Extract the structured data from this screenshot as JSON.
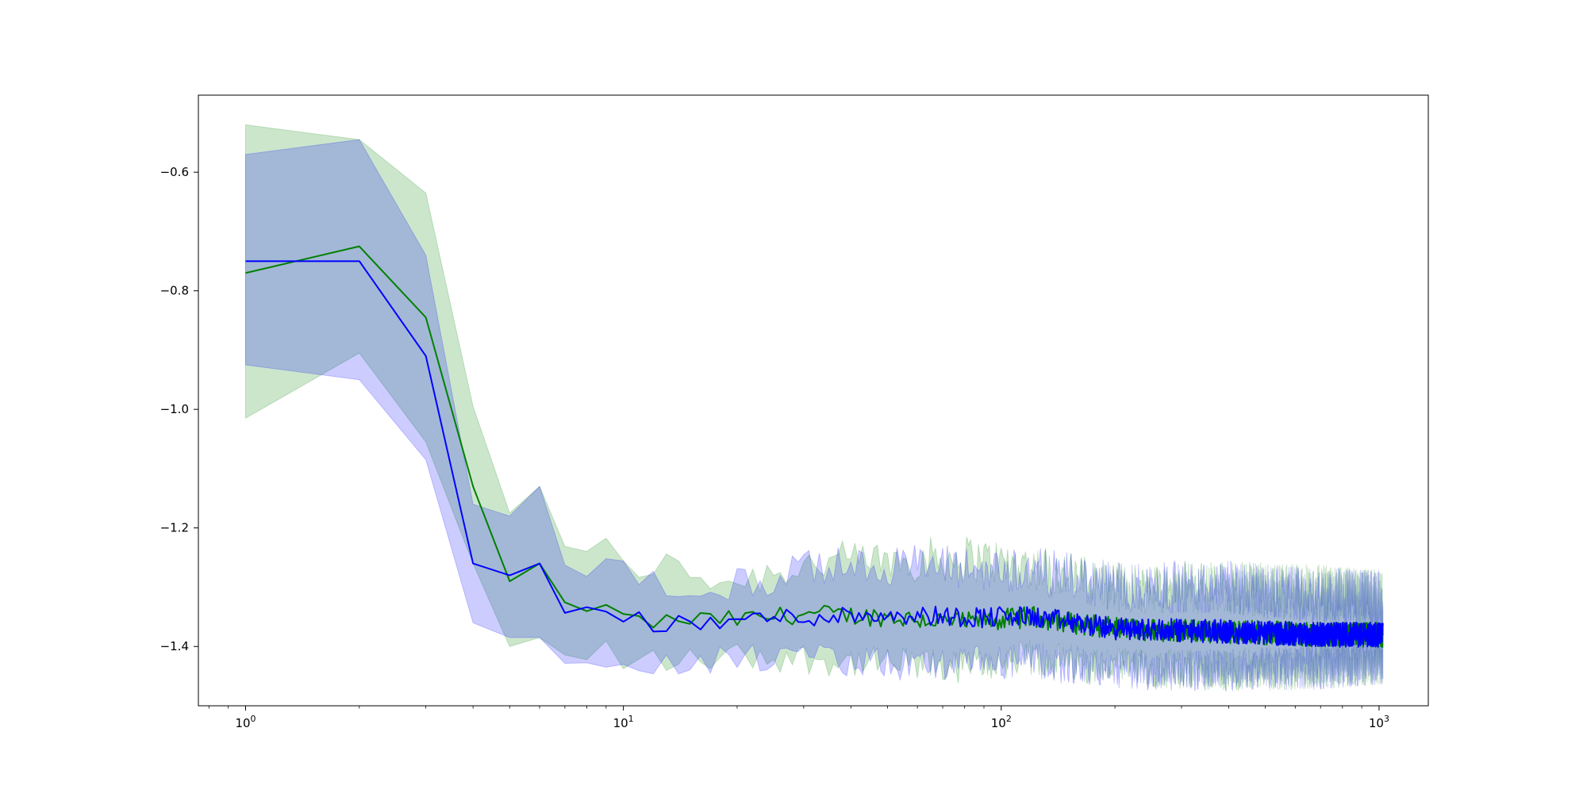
{
  "chart_data": {
    "type": "line",
    "title": "",
    "xlabel": "",
    "ylabel": "",
    "xscale": "log",
    "xlim": [
      0.75,
      1350
    ],
    "ylim": [
      -1.5,
      -0.47
    ],
    "grid": false,
    "legend": "none",
    "x_ticks": [
      {
        "value": 1,
        "base": "10",
        "exp": "0"
      },
      {
        "value": 10,
        "base": "10",
        "exp": "1"
      },
      {
        "value": 100,
        "base": "10",
        "exp": "2"
      },
      {
        "value": 1000,
        "base": "10",
        "exp": "3"
      }
    ],
    "y_ticks": [
      {
        "value": -0.6,
        "label": "−0.6"
      },
      {
        "value": -0.8,
        "label": "−0.8"
      },
      {
        "value": -1.0,
        "label": "−1.0"
      },
      {
        "value": -1.2,
        "label": "−1.2"
      },
      {
        "value": -1.4,
        "label": "−1.4"
      }
    ],
    "series": [
      {
        "color": "#008000",
        "band_color": "#008000",
        "band_opacity": 0.2,
        "anchors": [
          [
            1,
            -0.77,
            -0.52,
            -1.015
          ],
          [
            2,
            -0.725,
            -0.545,
            -0.905
          ],
          [
            3,
            -0.845,
            -0.635,
            -1.055
          ],
          [
            4,
            -1.13,
            -0.995,
            -1.26
          ],
          [
            5,
            -1.29,
            -1.175,
            -1.4
          ],
          [
            6,
            -1.26,
            -1.13,
            -1.385
          ],
          [
            7,
            -1.33,
            -1.22,
            -1.42
          ],
          [
            8,
            -1.355,
            -1.25,
            -1.43
          ],
          [
            9,
            -1.32,
            -1.24,
            -1.4
          ],
          [
            10,
            -1.355,
            -1.27,
            -1.43
          ],
          [
            12,
            -1.36,
            -1.26,
            -1.42
          ],
          [
            15,
            -1.355,
            -1.275,
            -1.425
          ],
          [
            20,
            -1.355,
            -1.29,
            -1.415
          ],
          [
            30,
            -1.345,
            -1.26,
            -1.42
          ],
          [
            50,
            -1.35,
            -1.255,
            -1.43
          ],
          [
            80,
            -1.36,
            -1.25,
            -1.435
          ],
          [
            120,
            -1.35,
            -1.265,
            -1.42
          ],
          [
            200,
            -1.37,
            -1.3,
            -1.435
          ],
          [
            400,
            -1.375,
            -1.3,
            -1.44
          ],
          [
            700,
            -1.38,
            -1.31,
            -1.435
          ],
          [
            1024,
            -1.38,
            -1.32,
            -1.425
          ]
        ]
      },
      {
        "color": "#0000ff",
        "band_color": "#0000ff",
        "band_opacity": 0.2,
        "anchors": [
          [
            1,
            -0.75,
            -0.57,
            -0.925
          ],
          [
            2,
            -0.75,
            -0.545,
            -0.95
          ],
          [
            3,
            -0.91,
            -0.74,
            -1.085
          ],
          [
            4,
            -1.26,
            -1.16,
            -1.36
          ],
          [
            5,
            -1.28,
            -1.18,
            -1.385
          ],
          [
            6,
            -1.26,
            -1.13,
            -1.385
          ],
          [
            7,
            -1.33,
            -1.25,
            -1.415
          ],
          [
            8,
            -1.345,
            -1.26,
            -1.42
          ],
          [
            9,
            -1.34,
            -1.26,
            -1.42
          ],
          [
            10,
            -1.345,
            -1.28,
            -1.41
          ],
          [
            12,
            -1.36,
            -1.29,
            -1.43
          ],
          [
            15,
            -1.365,
            -1.3,
            -1.435
          ],
          [
            20,
            -1.355,
            -1.3,
            -1.42
          ],
          [
            30,
            -1.35,
            -1.27,
            -1.42
          ],
          [
            50,
            -1.345,
            -1.26,
            -1.43
          ],
          [
            80,
            -1.35,
            -1.27,
            -1.43
          ],
          [
            120,
            -1.35,
            -1.27,
            -1.425
          ],
          [
            200,
            -1.37,
            -1.3,
            -1.44
          ],
          [
            400,
            -1.375,
            -1.3,
            -1.44
          ],
          [
            700,
            -1.38,
            -1.315,
            -1.435
          ],
          [
            1024,
            -1.38,
            -1.32,
            -1.425
          ]
        ]
      }
    ]
  }
}
